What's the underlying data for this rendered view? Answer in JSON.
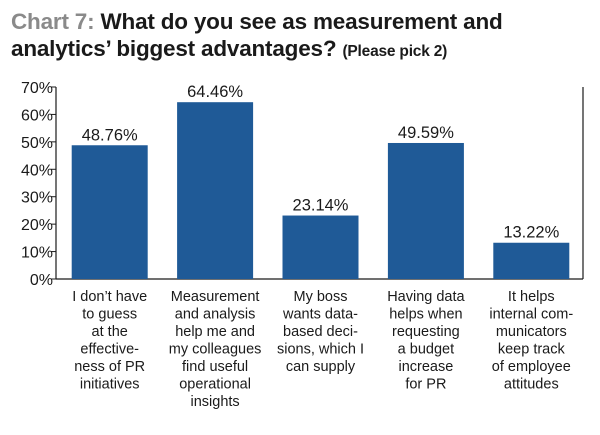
{
  "title": {
    "prefix": "Chart 7:",
    "main": "What do you see as measurement and analytics’ biggest advantages?",
    "note": "(Please pick 2)"
  },
  "chart_data": {
    "type": "bar",
    "title": "What do you see as measurement and analytics’ biggest advantages? (Please pick 2)",
    "xlabel": "",
    "ylabel": "",
    "ylim": [
      0,
      70
    ],
    "yticks": [
      "0%",
      "10%",
      "20%",
      "30%",
      "40%",
      "50%",
      "60%",
      "70%"
    ],
    "grid": false,
    "bar_color": "#1f5a97",
    "categories": [
      "I don’t have to guess at the effectiveness of PR initiatives",
      "Measurement and analysis help me and my colleagues find useful operational insights",
      "My boss wants data-based decisions, which I can supply",
      "Having data helps when requesting a budget increase for PR",
      "It helps internal communicators keep track of employee attitudes"
    ],
    "category_lines": [
      [
        "I don’t have",
        "to guess",
        "at the",
        "effective-",
        "ness of PR",
        "initiatives"
      ],
      [
        "Measurement",
        "and analysis",
        "help me and",
        "my colleagues",
        "find useful",
        "operational",
        "insights"
      ],
      [
        "My boss",
        "wants data-",
        "based deci-",
        "sions, which I",
        "can supply"
      ],
      [
        "Having data",
        "helps when",
        "requesting",
        "a budget",
        "increase",
        "for PR"
      ],
      [
        "It helps",
        "internal com-",
        "municators",
        "keep track",
        "of employee",
        "attitudes"
      ]
    ],
    "values": [
      48.76,
      64.46,
      23.14,
      49.59,
      13.22
    ],
    "value_labels": [
      "48.76%",
      "64.46%",
      "23.14%",
      "49.59%",
      "13.22%"
    ]
  }
}
